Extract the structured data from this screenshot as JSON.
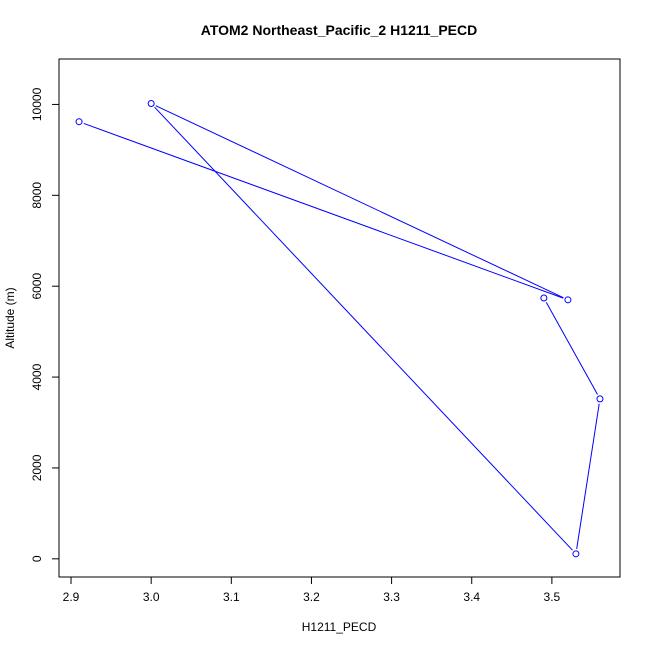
{
  "chart_data": {
    "type": "line",
    "title": "ATOM2 Northeast_Pacific_2 H1211_PECD",
    "xlabel": "H1211_PECD",
    "ylabel": "Altitude (m)",
    "xlim": [
      2.885,
      3.585
    ],
    "ylim": [
      -400,
      11000
    ],
    "x_ticks": [
      "2.9",
      "3.0",
      "3.1",
      "3.2",
      "3.3",
      "3.4",
      "3.5"
    ],
    "y_ticks": [
      "0",
      "2000",
      "4000",
      "6000",
      "8000",
      "10000"
    ],
    "series": [
      {
        "x": [
          2.91,
          3.52,
          3.0,
          3.53,
          3.56,
          3.49
        ],
        "y": [
          9620,
          5700,
          10020,
          110,
          3520,
          5740
        ]
      }
    ],
    "color": "#0000ff",
    "marker": "open-circle",
    "grid": false,
    "legend": "none"
  }
}
